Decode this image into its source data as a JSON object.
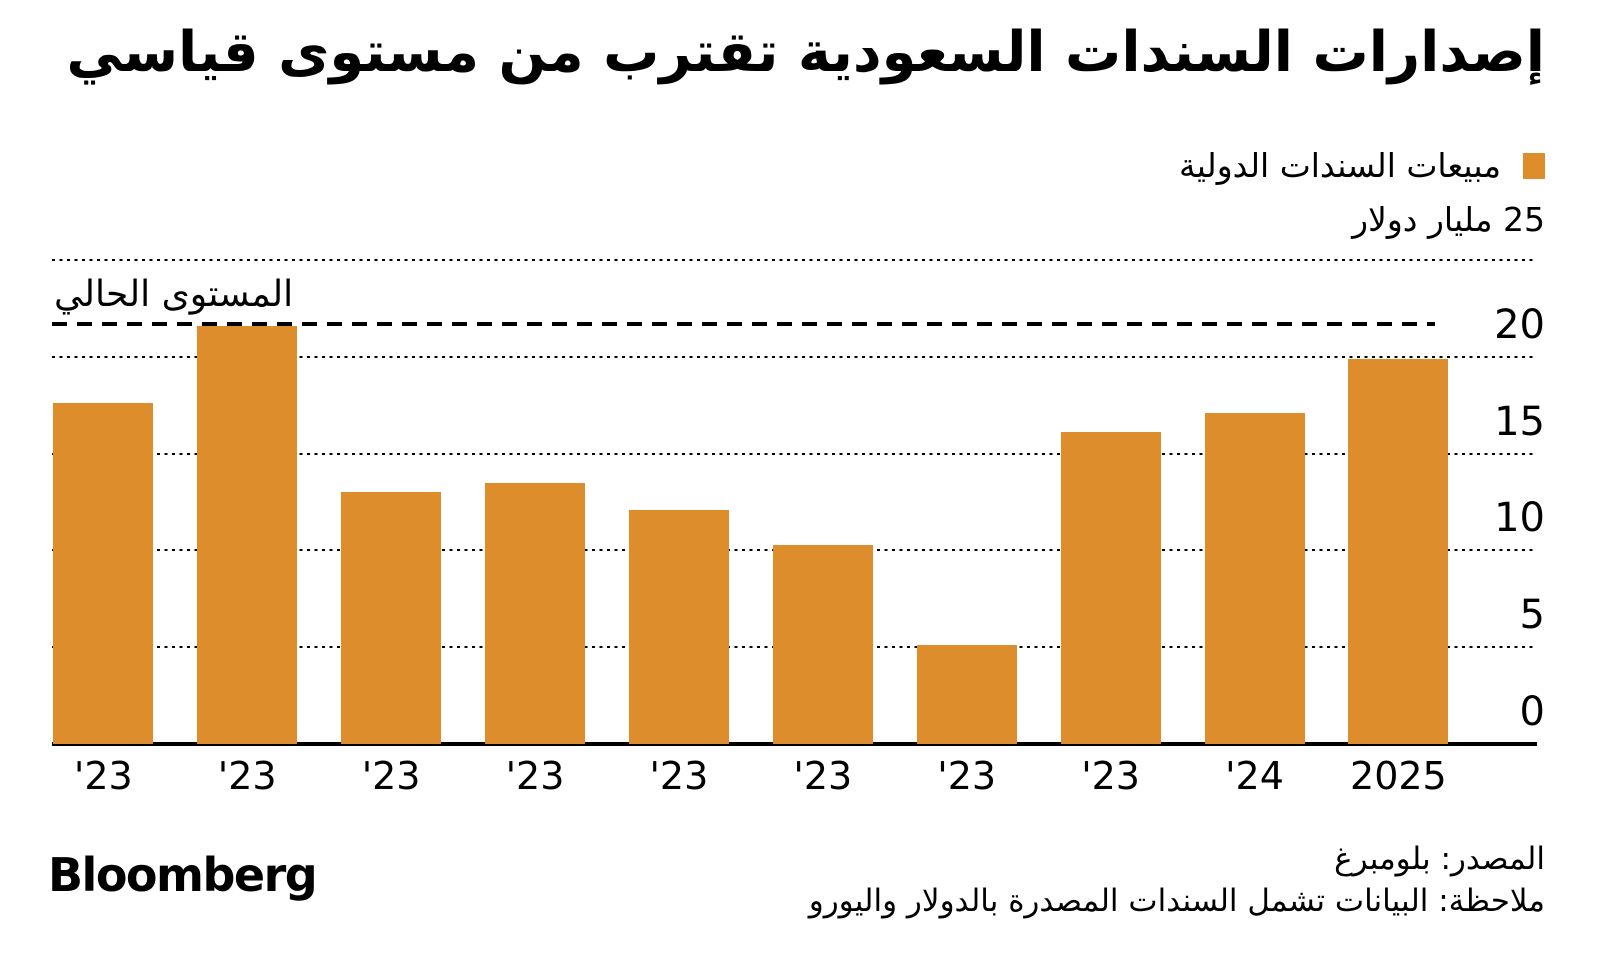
{
  "header": {
    "title": "إصدارات السندات السعودية تقترب من مستوى قياسي"
  },
  "legend": {
    "label": "مبيعات السندات الدولية",
    "swatch_color": "#DE8D2C"
  },
  "axes": {
    "y": {
      "unit_label": "25 مليار دولار",
      "ticks_shown": [
        "20",
        "15",
        "10",
        "5",
        "0"
      ],
      "range": [
        0,
        25
      ]
    }
  },
  "annotation": {
    "label": "المستوى الحالي"
  },
  "footer": {
    "source": "المصدر: بلومبرغ",
    "note": "ملاحظة: البيانات تشمل السندات المصدرة بالدولار واليورو",
    "logo": "Bloomberg"
  },
  "chart_data": {
    "type": "bar",
    "title": "إصدارات السندات السعودية تقترب من مستوى قياسي",
    "series_name": "مبيعات السندات الدولية",
    "categories": [
      "'23",
      "'23",
      "'23",
      "'23",
      "'23",
      "'23",
      "'23",
      "'23",
      "'24",
      "2025"
    ],
    "values": [
      17.6,
      21.6,
      13.0,
      13.5,
      12.1,
      10.3,
      5.1,
      16.1,
      17.1,
      19.9
    ],
    "unit": "مليار دولار",
    "ylabel": "25 مليار دولار",
    "ylim": [
      0,
      25
    ],
    "ytick_step": 5,
    "grid": "horizontal-dotted",
    "legend_position": "top-right",
    "bar_color": "#DE8D2C",
    "reference_line": {
      "label": "المستوى الحالي",
      "value": 21.7,
      "style": "dashed-horizontal"
    }
  }
}
